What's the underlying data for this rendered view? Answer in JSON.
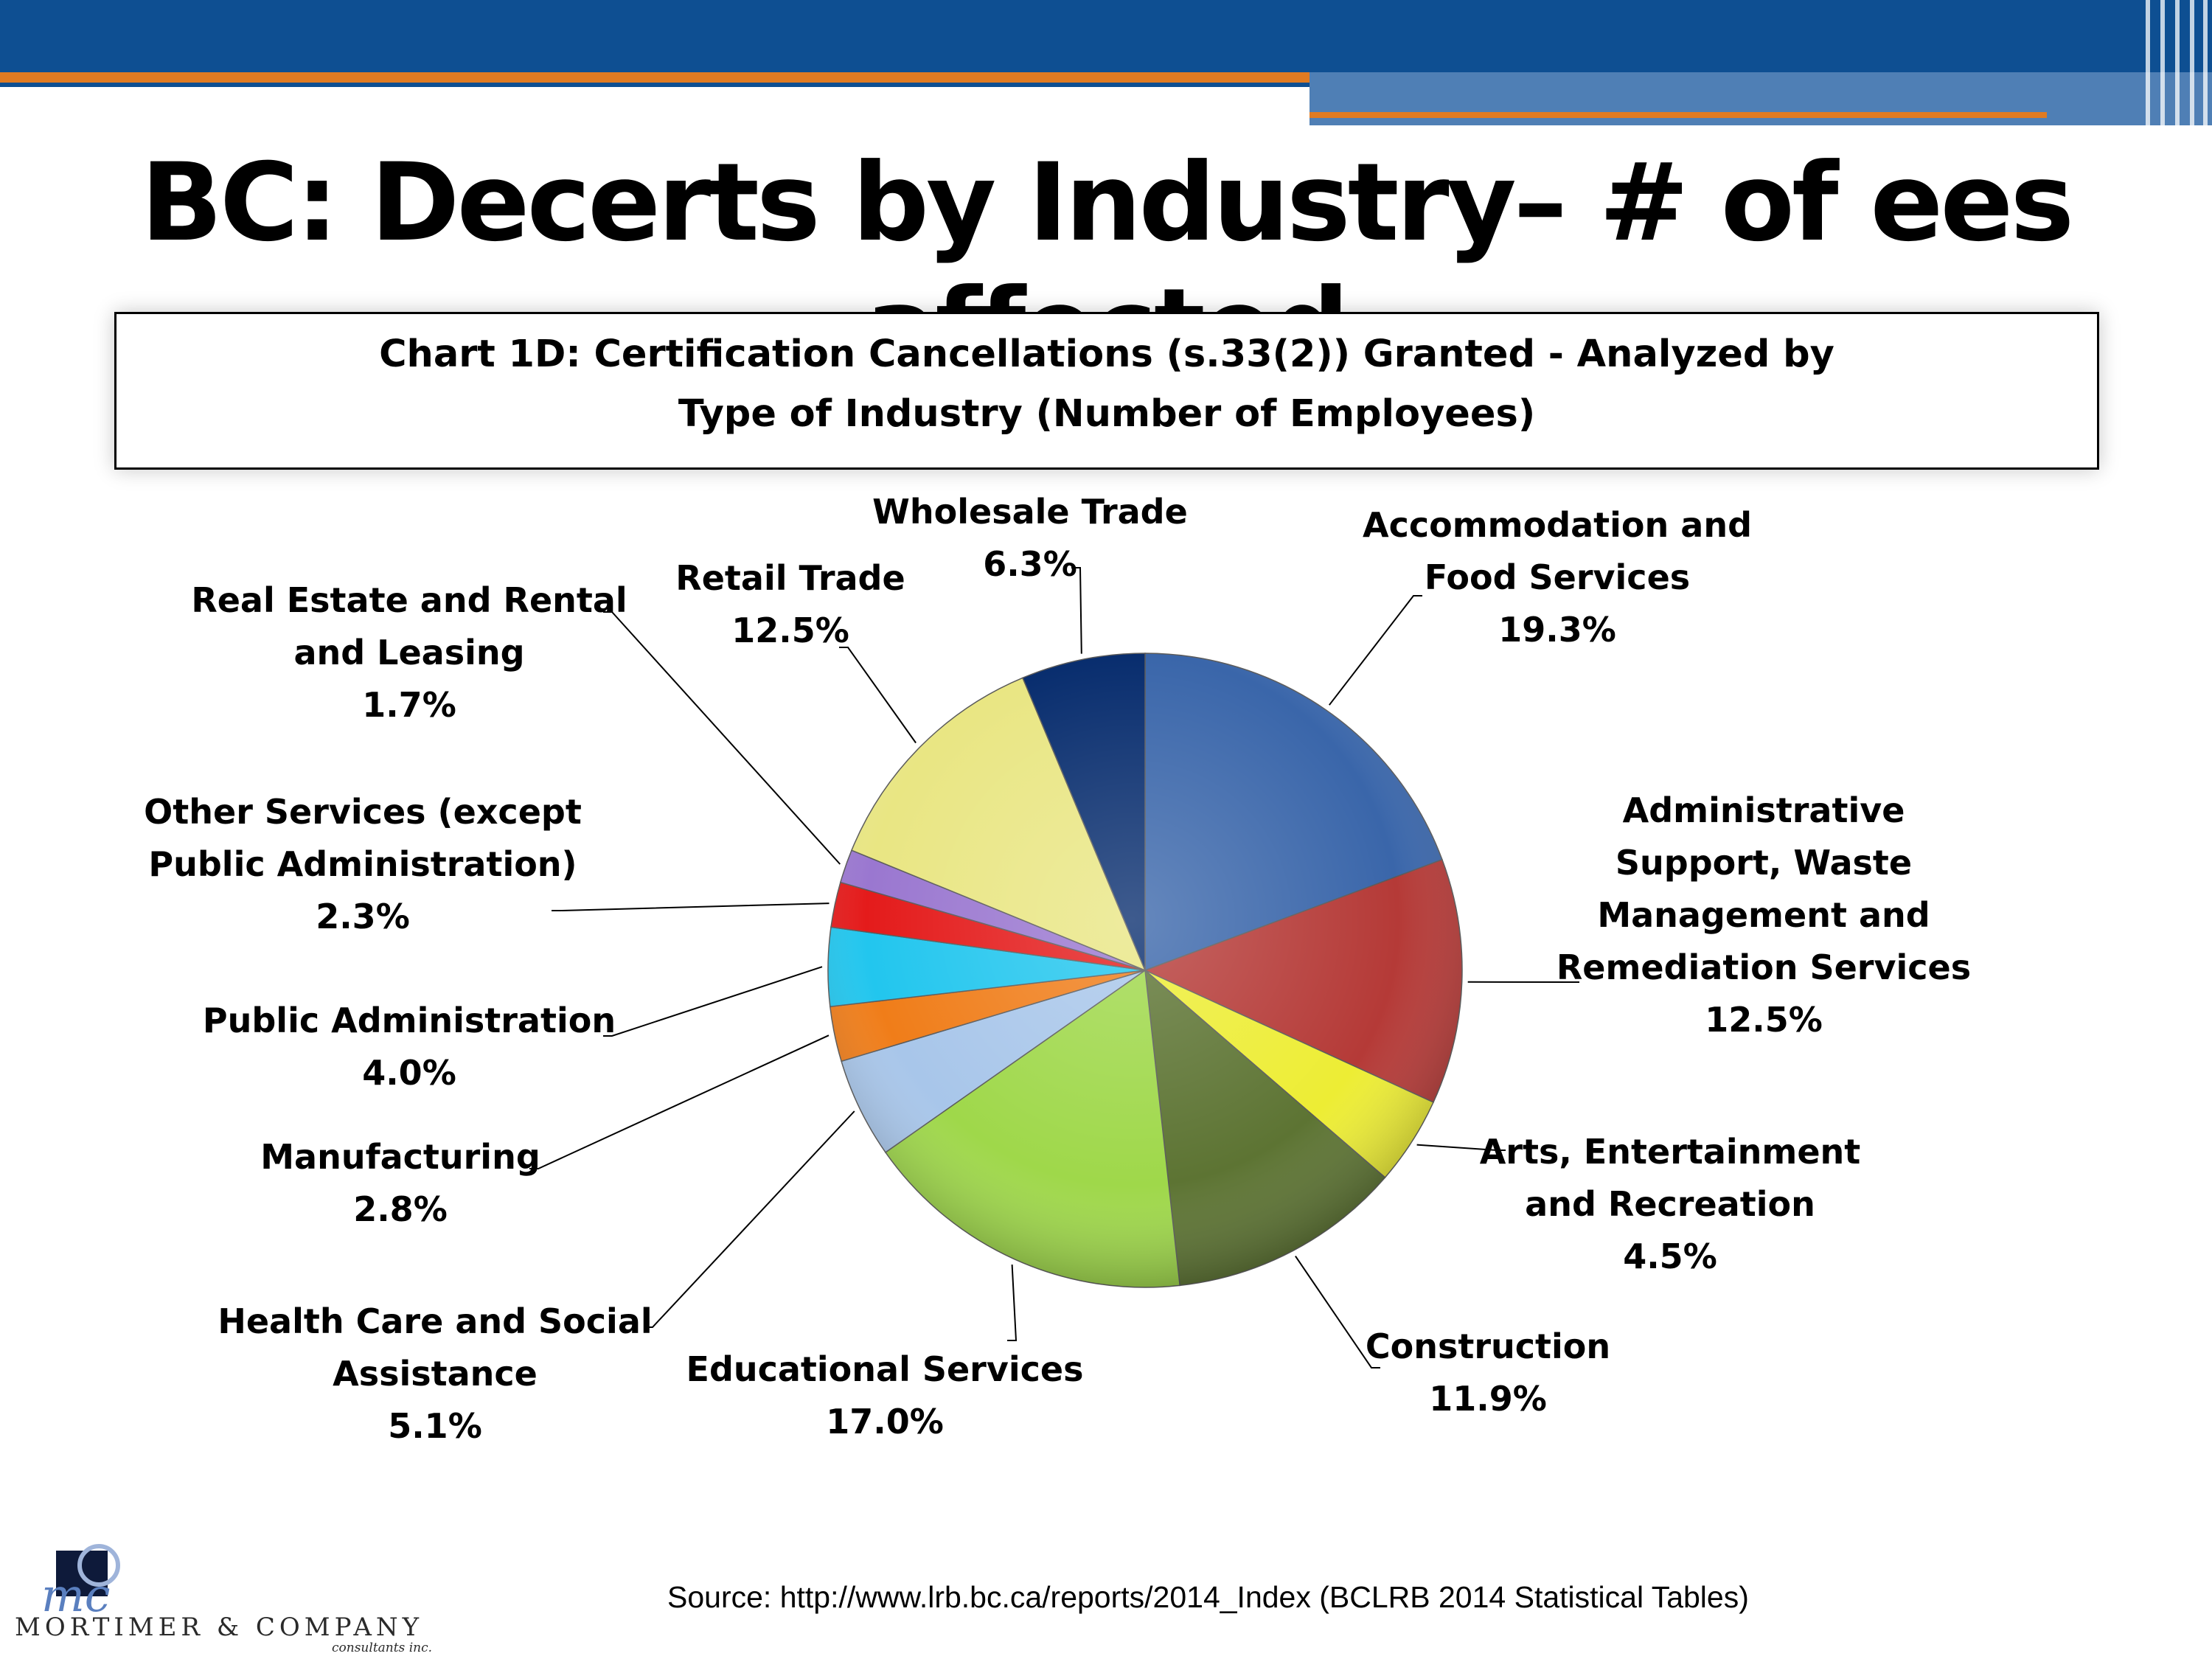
{
  "slide": {
    "title": "BC: Decerts by Industry– # of ees affected",
    "source": "Source: http://www.lrb.bc.ca/reports/2014_Index (BCLRB 2014 Statistical Tables)"
  },
  "logo": {
    "mark_text": "mc",
    "company": "MORTIMER & COMPANY",
    "subtitle": "consultants inc."
  },
  "chart_data": {
    "type": "pie",
    "title": [
      "Chart 1D: Certification Cancellations (s.33(2)) Granted - Analyzed by",
      "Type of Industry (Number of Employees)"
    ],
    "slices": [
      {
        "name": "Accommodation and Food Services",
        "label_lines": [
          "Accommodation and",
          "Food Services"
        ],
        "value": 19.3,
        "value_label": "19.3%",
        "color": "#3a66aa"
      },
      {
        "name": "Administrative Support, Waste Management and Remediation Services",
        "label_lines": [
          "Administrative",
          "Support, Waste",
          "Management and",
          "Remediation Services"
        ],
        "value": 12.5,
        "value_label": "12.5%",
        "color": "#b53a37"
      },
      {
        "name": "Arts, Entertainment and Recreation",
        "label_lines": [
          "Arts, Entertainment",
          "and Recreation"
        ],
        "value": 4.5,
        "value_label": "4.5%",
        "color": "#eded34"
      },
      {
        "name": "Construction",
        "label_lines": [
          "Construction"
        ],
        "value": 11.9,
        "value_label": "11.9%",
        "color": "#5d7433"
      },
      {
        "name": "Educational Services",
        "label_lines": [
          "Educational Services"
        ],
        "value": 17.0,
        "value_label": "17.0%",
        "color": "#9fd84a"
      },
      {
        "name": "Health Care and Social Assistance",
        "label_lines": [
          "Health Care and Social",
          "Assistance"
        ],
        "value": 5.1,
        "value_label": "5.1%",
        "color": "#a8c6ea"
      },
      {
        "name": "Manufacturing",
        "label_lines": [
          "Manufacturing"
        ],
        "value": 2.8,
        "value_label": "2.8%",
        "color": "#f07d19"
      },
      {
        "name": "Public Administration",
        "label_lines": [
          "Public Administration"
        ],
        "value": 4.0,
        "value_label": "4.0%",
        "color": "#22c6ee"
      },
      {
        "name": "Other Services (except Public Administration)",
        "label_lines": [
          "Other Services (except",
          "Public Administration)"
        ],
        "value": 2.3,
        "value_label": "2.3%",
        "color": "#e41b1b"
      },
      {
        "name": "Real Estate and Rental and Leasing",
        "label_lines": [
          "Real Estate and Rental",
          "and Leasing"
        ],
        "value": 1.7,
        "value_label": "1.7%",
        "color": "#9a77d0"
      },
      {
        "name": "Retail Trade",
        "label_lines": [
          "Retail Trade"
        ],
        "value": 12.5,
        "value_label": "12.5%",
        "color": "#e9e683"
      },
      {
        "name": "Wholesale Trade",
        "label_lines": [
          "Wholesale Trade"
        ],
        "value": 6.3,
        "value_label": "6.3%",
        "color": "#082d6e"
      }
    ]
  }
}
